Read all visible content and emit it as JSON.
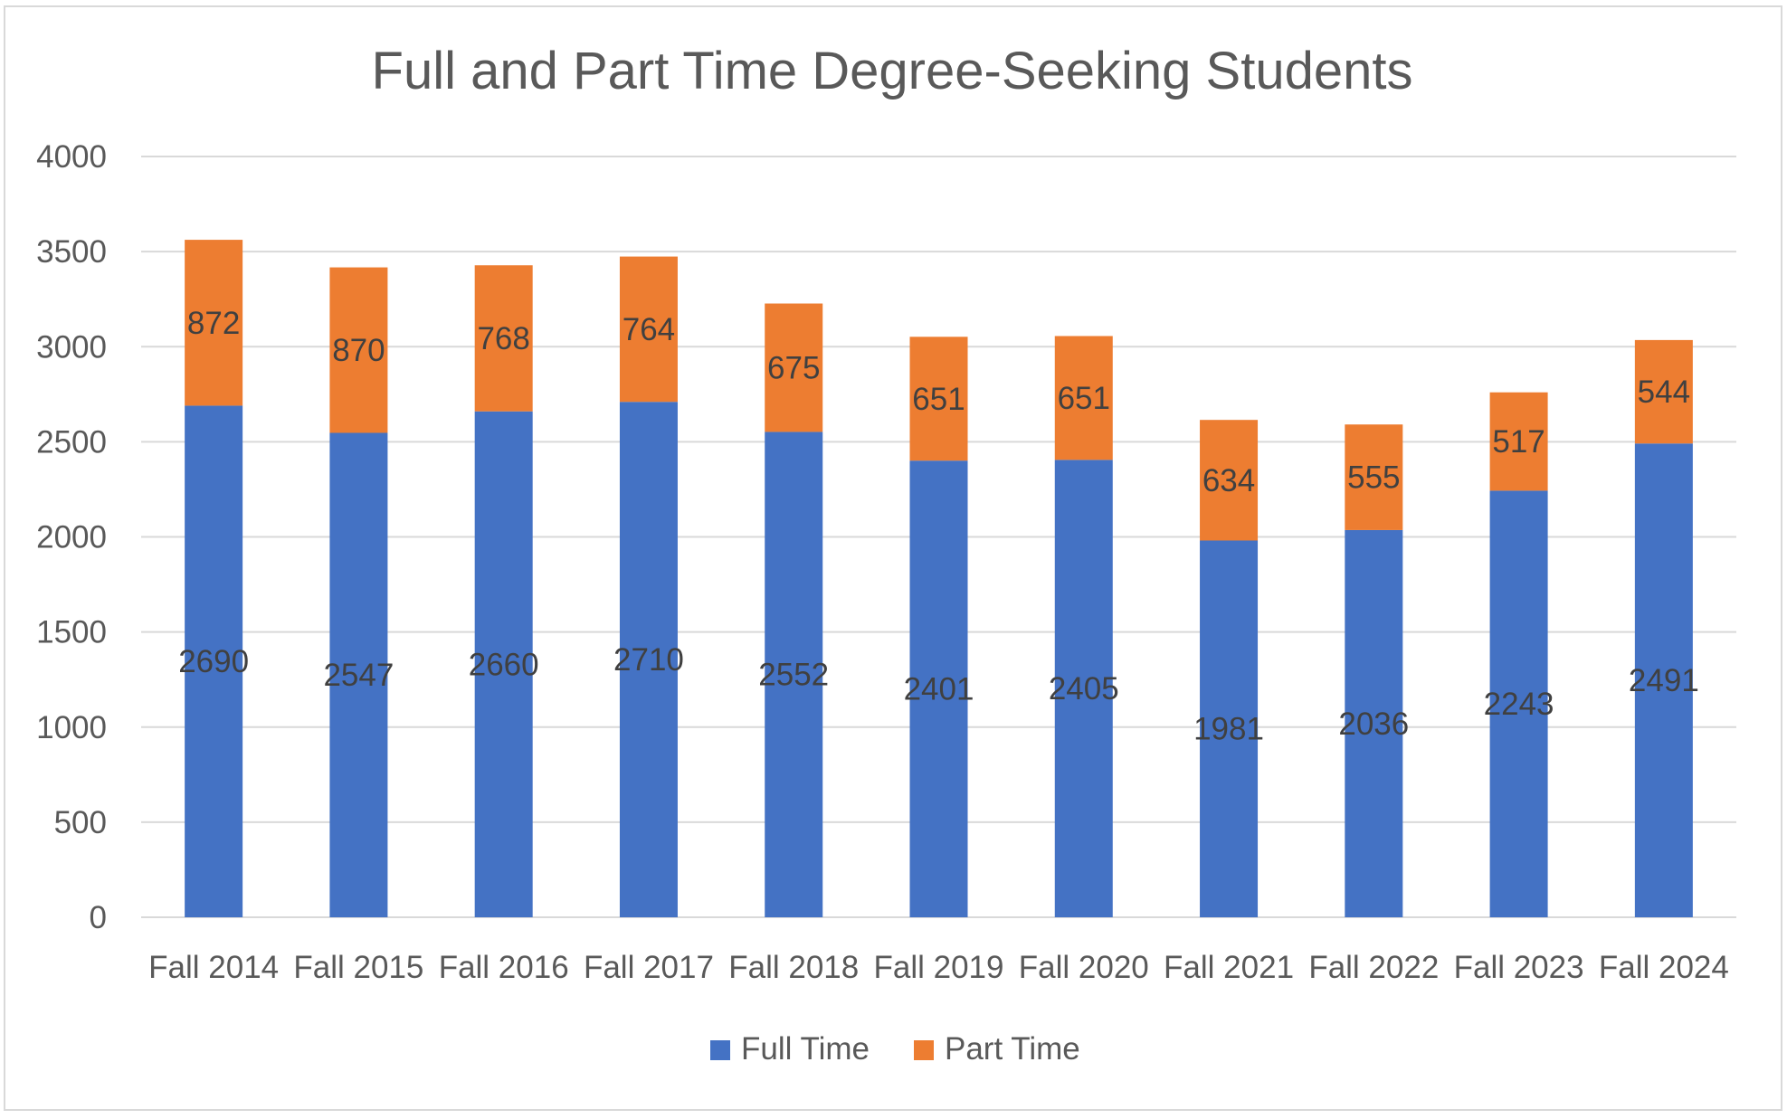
{
  "chart_data": {
    "type": "bar",
    "stacked": true,
    "title": "Full and Part Time Degree-Seeking Students",
    "xlabel": "",
    "ylabel": "",
    "ylim": [
      0,
      4000
    ],
    "yticks": [
      0,
      500,
      1000,
      1500,
      2000,
      2500,
      3000,
      3500,
      4000
    ],
    "grid": true,
    "legend_position": "bottom",
    "categories": [
      "Fall 2014",
      "Fall 2015",
      "Fall 2016",
      "Fall 2017",
      "Fall 2018",
      "Fall 2019",
      "Fall 2020",
      "Fall 2021",
      "Fall 2022",
      "Fall 2023",
      "Fall 2024"
    ],
    "series": [
      {
        "name": "Full Time",
        "color": "#4472C4",
        "values": [
          2690,
          2547,
          2660,
          2710,
          2552,
          2401,
          2405,
          1981,
          2036,
          2243,
          2491
        ]
      },
      {
        "name": "Part Time",
        "color": "#ED7D31",
        "values": [
          872,
          870,
          768,
          764,
          675,
          651,
          651,
          634,
          555,
          517,
          544
        ]
      }
    ]
  }
}
